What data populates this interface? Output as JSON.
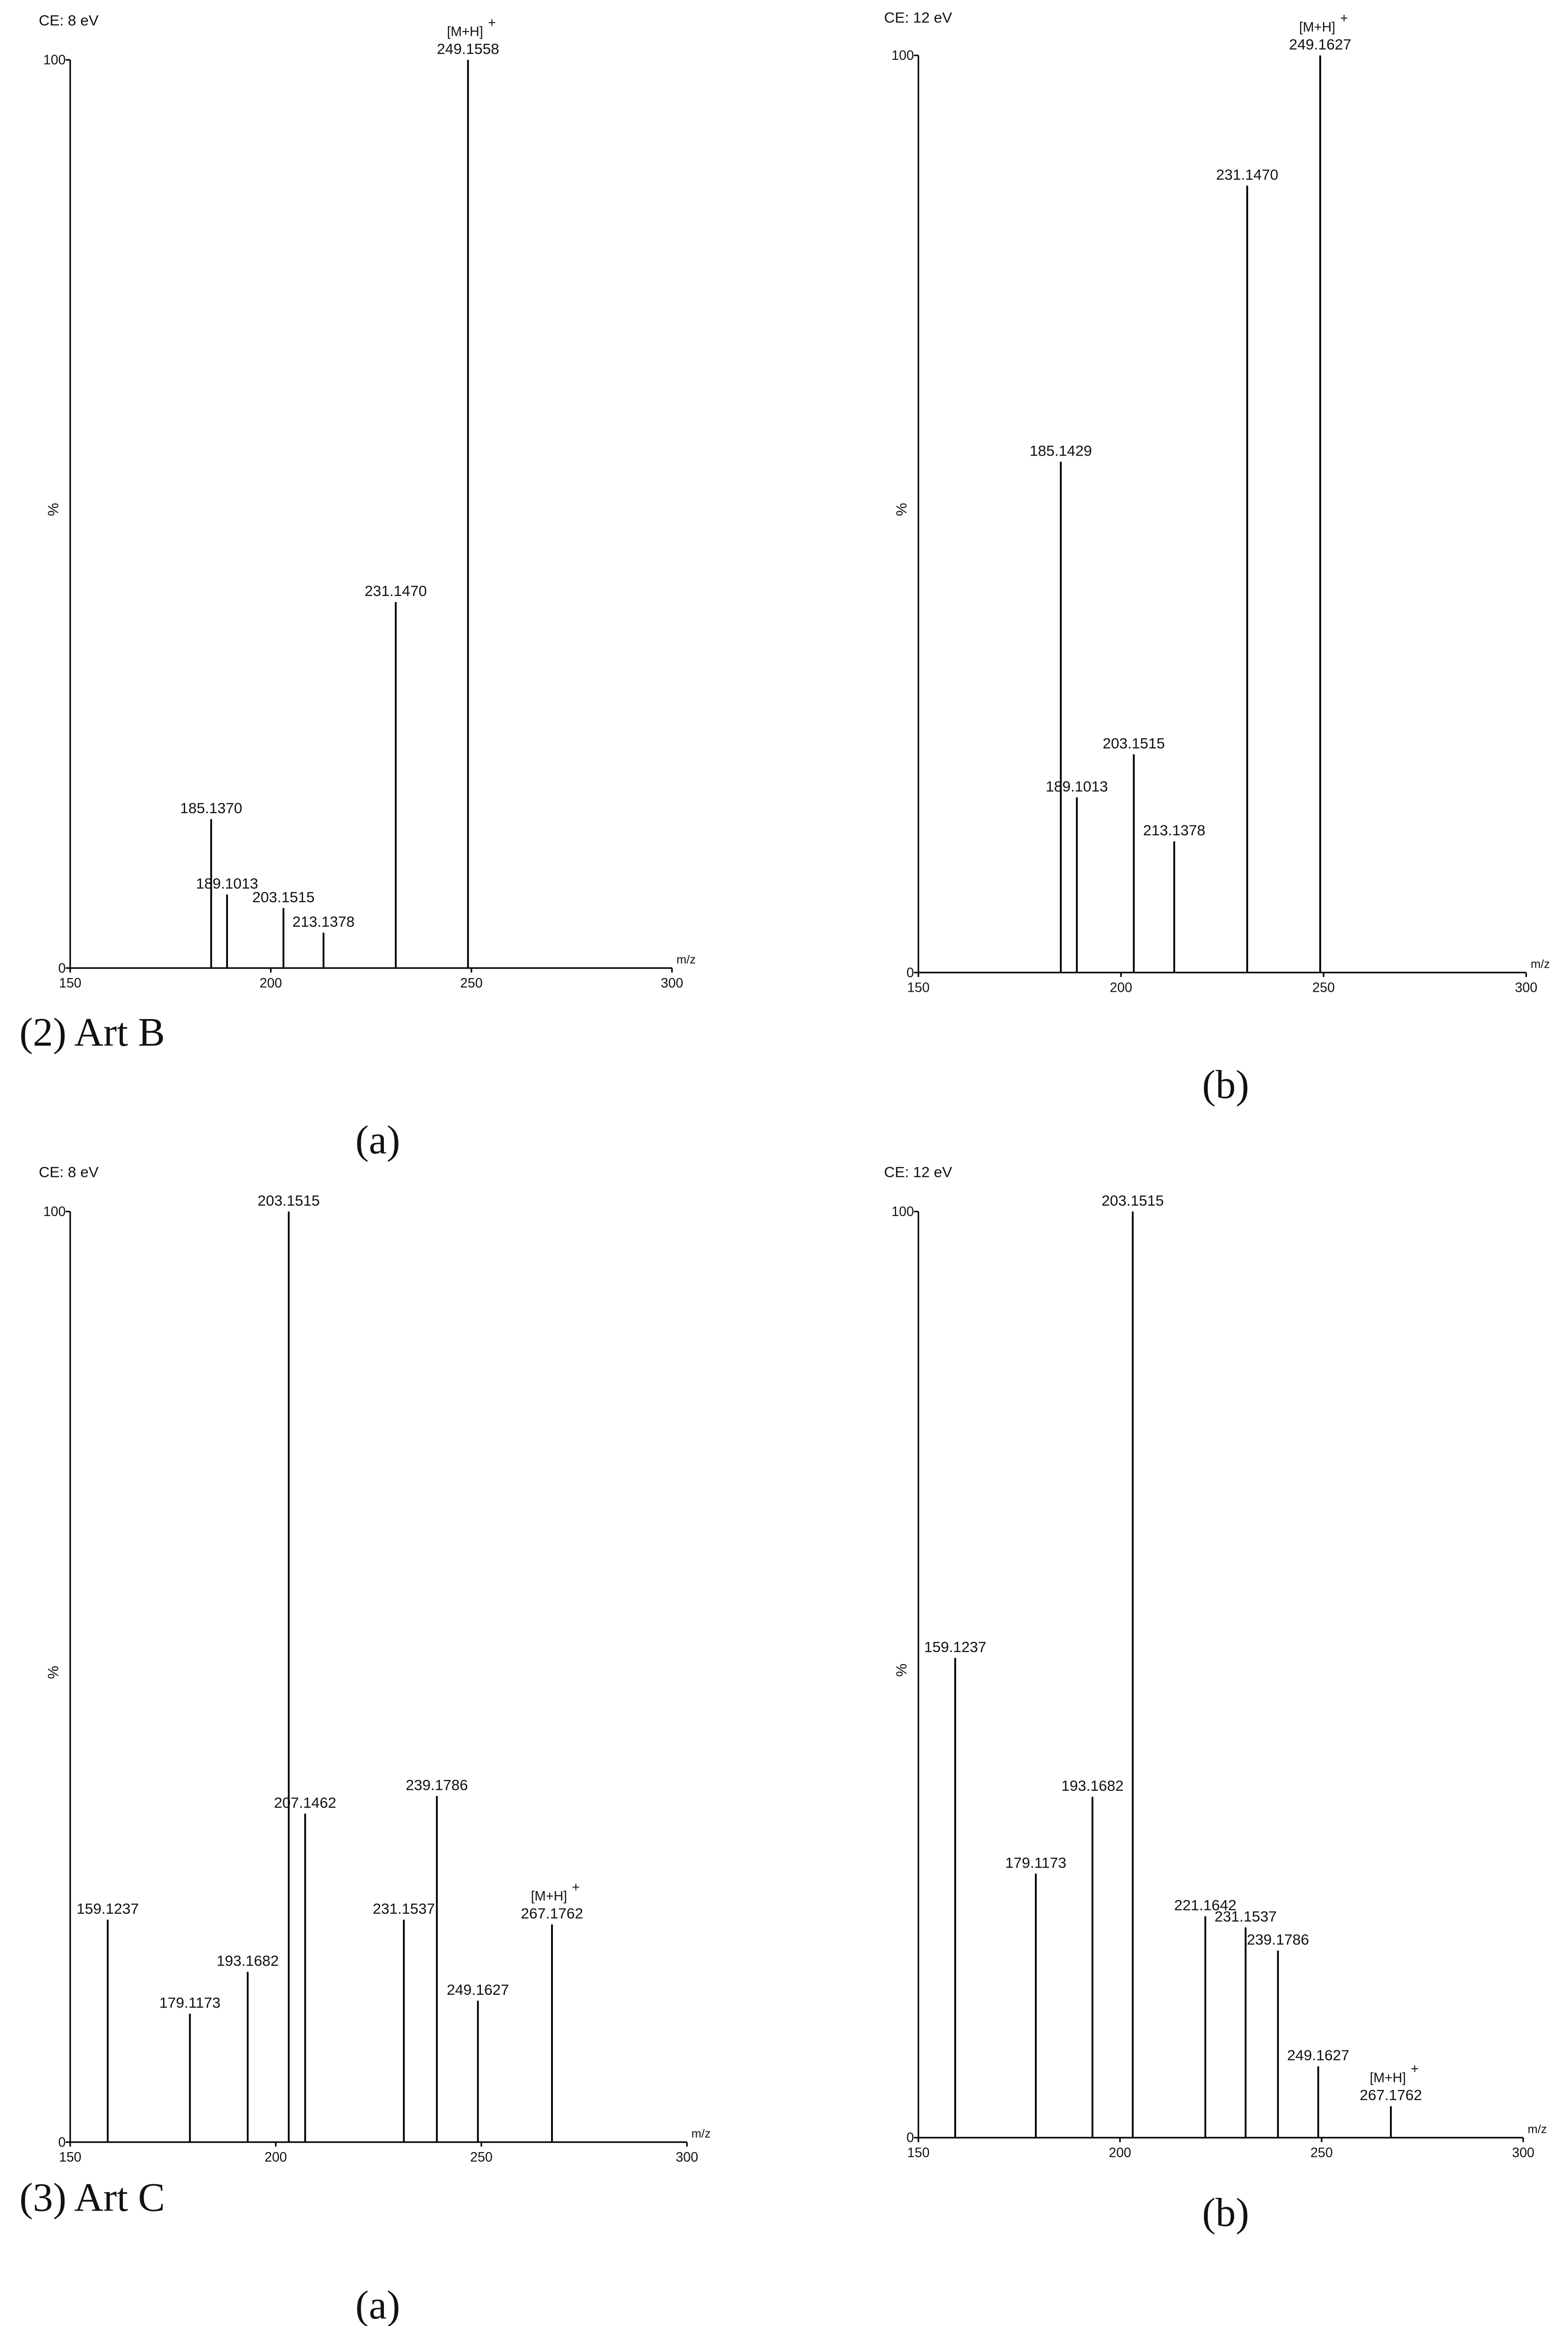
{
  "chart_data": [
    {
      "type": "bar",
      "title": "CE: 8 eV",
      "ylabel": "%",
      "xlabel": "m/z",
      "color": "#000000",
      "x": [
        185.137,
        189.1013,
        203.1515,
        213.1378,
        231.147,
        249.1558
      ],
      "values": [
        16.4,
        8.1,
        6.6,
        3.9,
        40.3,
        100
      ],
      "peak_labels": [
        "185.1370",
        "189.1013",
        "203.1515",
        "213.1378",
        "231.1470",
        "249.1558"
      ],
      "ion_labels": [
        null,
        null,
        null,
        null,
        null,
        "[M+H]"
      ],
      "ion_label_superscript": "+",
      "xlim": [
        150,
        300
      ],
      "xticks": [
        150,
        200,
        250,
        300
      ],
      "ylim": [
        0,
        100
      ],
      "yticks": [
        0,
        100
      ]
    },
    {
      "type": "bar",
      "title": "CE: 12 eV",
      "ylabel": "%",
      "xlabel": "m/z",
      "color": "#000000",
      "x": [
        185.1429,
        189.1013,
        203.1515,
        213.1378,
        231.147,
        249.1627
      ],
      "values": [
        55.7,
        19.1,
        23.8,
        14.3,
        85.8,
        100
      ],
      "peak_labels": [
        "185.1429",
        "189.1013",
        "203.1515",
        "213.1378",
        "231.1470",
        "249.1627"
      ],
      "ion_labels": [
        null,
        null,
        null,
        null,
        null,
        "[M+H]"
      ],
      "ion_label_superscript": "+",
      "xlim": [
        150,
        300
      ],
      "xticks": [
        150,
        200,
        250,
        300
      ],
      "ylim": [
        0,
        100
      ],
      "yticks": [
        0,
        100
      ]
    },
    {
      "type": "bar",
      "title": "CE: 8 eV",
      "ylabel": "%",
      "xlabel": "m/z",
      "color": "#000000",
      "x": [
        159.1237,
        179.1173,
        193.1682,
        203.1515,
        207.1462,
        231.1537,
        239.1786,
        249.1627,
        267.1762
      ],
      "values": [
        23.9,
        13.8,
        18.3,
        100,
        35.3,
        23.9,
        37.2,
        15.2,
        23.4
      ],
      "peak_labels": [
        "159.1237",
        "179.1173",
        "193.1682",
        "203.1515",
        "207.1462",
        "231.1537",
        "239.1786",
        "249.1627",
        "267.1762"
      ],
      "ion_labels": [
        null,
        null,
        null,
        null,
        null,
        null,
        null,
        null,
        "[M+H]"
      ],
      "ion_label_superscript": "+",
      "xlim": [
        150,
        300
      ],
      "xticks": [
        150,
        200,
        250,
        300
      ],
      "ylim": [
        0,
        100
      ],
      "yticks": [
        0,
        100
      ]
    },
    {
      "type": "bar",
      "title": "CE: 12 eV",
      "ylabel": "%",
      "xlabel": "m/z",
      "color": "#000000",
      "x": [
        159.1237,
        179.1173,
        193.1682,
        203.1515,
        221.1642,
        231.1537,
        239.1786,
        249.1627,
        267.1762
      ],
      "values": [
        51.8,
        28.5,
        36.8,
        100,
        23.9,
        22.7,
        20.2,
        7.7,
        3.4
      ],
      "peak_labels": [
        "159.1237",
        "179.1173",
        "193.1682",
        "203.1515",
        "221.1642",
        "231.1537",
        "239.1786",
        "249.1627",
        "267.1762"
      ],
      "ion_labels": [
        null,
        null,
        null,
        null,
        null,
        null,
        null,
        null,
        "[M+H]"
      ],
      "ion_label_superscript": "+",
      "xlim": [
        150,
        300
      ],
      "xticks": [
        150,
        200,
        250,
        300
      ],
      "ylim": [
        0,
        100
      ],
      "yticks": [
        0,
        100
      ]
    }
  ],
  "captions": [
    "(2) Art B",
    "(a)",
    "(b)",
    "(3) Art C",
    "(a)",
    "(b)"
  ]
}
